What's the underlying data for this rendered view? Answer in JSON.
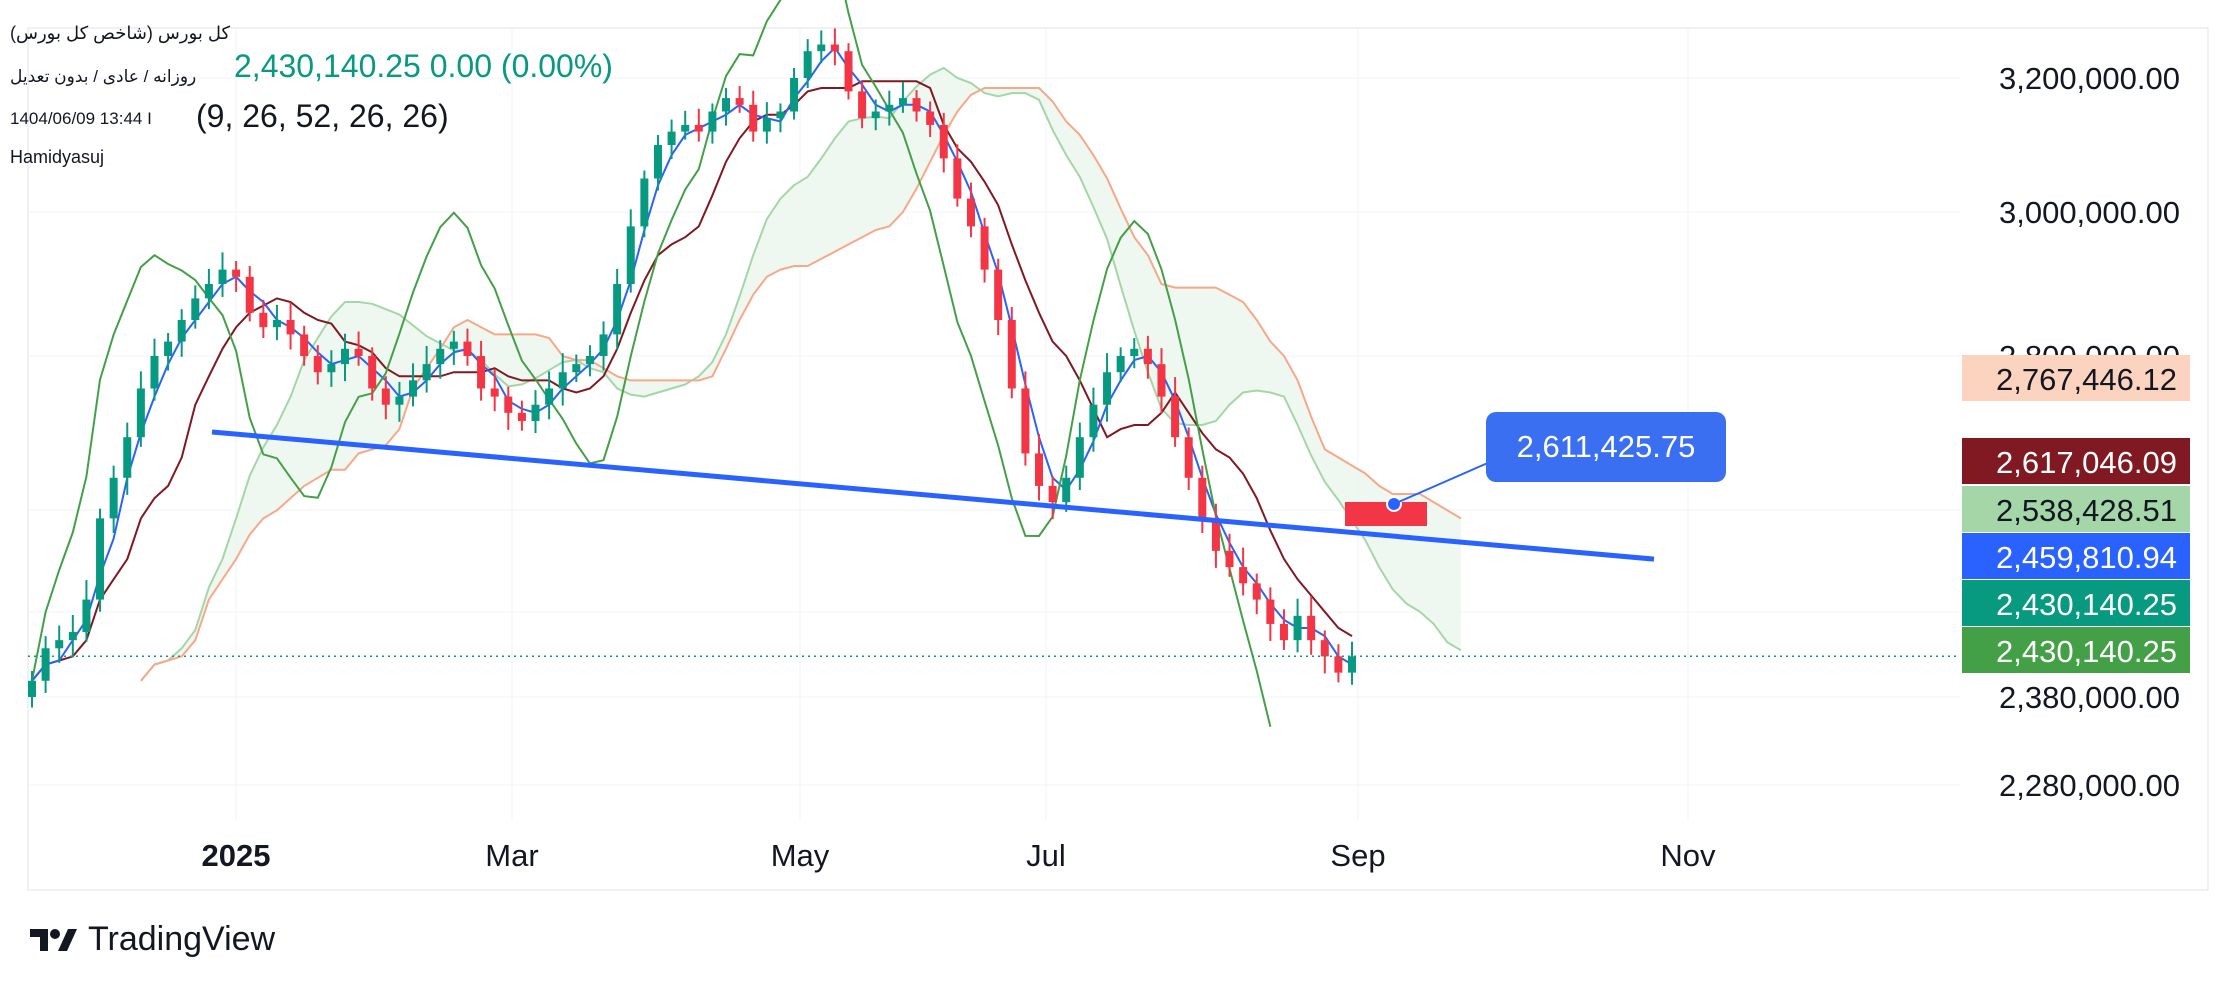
{
  "legend": {
    "title": "کل بورس (شاخص کل بورس)",
    "price_line": "2,430,140.25  0.00 (0.00%)",
    "subtitle": "روزانه / عادی / بدون تعدیل",
    "timestamp": "1404/06/09 13:44 I",
    "params": "(9, 26, 52, 26, 26)",
    "author": "Hamidyasuj"
  },
  "callout_value": "2,611,425.75",
  "footer": {
    "brand": "TradingView"
  },
  "colors": {
    "up": "#089981",
    "down": "#f23645",
    "tenkan": "#2962ff",
    "kijun": "#801922",
    "lagging": "#43a047",
    "span_a": "#a5d6a7",
    "span_b": "#f7a889",
    "trendline": "#2962ff"
  },
  "chart_data": {
    "type": "candlestick",
    "indicator": "Ichimoku Cloud (9, 26, 52, 26, 26)",
    "y_axis_ticks": [
      "3,200,000.00",
      "3,000,000.00",
      "2,800,000.00",
      "2,380,000.00",
      "2,280,000.00"
    ],
    "x_axis_ticks": [
      "2025",
      "Mar",
      "May",
      "Jul",
      "Sep",
      "Nov"
    ],
    "price_tags": [
      {
        "label": "2,767,446.12",
        "color": "#fbd3bf",
        "text": "#131722"
      },
      {
        "label": "2,617,046.09",
        "color": "#801922",
        "text": "#ffffff"
      },
      {
        "label": "2,538,428.51",
        "color": "#a5d6a7",
        "text": "#131722"
      },
      {
        "label": "2,459,810.94",
        "color": "#2962ff",
        "text": "#ffffff"
      },
      {
        "label": "2,430,140.25",
        "color": "#089981",
        "text": "#ffffff"
      },
      {
        "label": "2,430,140.25",
        "color": "#43a047",
        "text": "#ffffff"
      }
    ],
    "last_price": 2430140.25,
    "trendline_end_value": 2611425.75,
    "close_series": [
      2400000,
      2440000,
      2450000,
      2460000,
      2500000,
      2600000,
      2650000,
      2700000,
      2760000,
      2800000,
      2820000,
      2850000,
      2880000,
      2900000,
      2920000,
      2910000,
      2860000,
      2840000,
      2850000,
      2830000,
      2800000,
      2780000,
      2790000,
      2810000,
      2800000,
      2760000,
      2740000,
      2750000,
      2770000,
      2790000,
      2810000,
      2820000,
      2800000,
      2760000,
      2750000,
      2730000,
      2720000,
      2740000,
      2760000,
      2780000,
      2790000,
      2800000,
      2830000,
      2900000,
      2980000,
      3050000,
      3100000,
      3120000,
      3130000,
      3120000,
      3150000,
      3170000,
      3160000,
      3120000,
      3140000,
      3150000,
      3200000,
      3240000,
      3250000,
      3240000,
      3180000,
      3140000,
      3150000,
      3160000,
      3170000,
      3150000,
      3130000,
      3080000,
      3020000,
      2980000,
      2920000,
      2850000,
      2760000,
      2680000,
      2640000,
      2620000,
      2650000,
      2700000,
      2740000,
      2780000,
      2800000,
      2810000,
      2790000,
      2750000,
      2700000,
      2650000,
      2600000,
      2560000,
      2540000,
      2520000,
      2500000,
      2470000,
      2450000,
      2480000,
      2450000,
      2430000,
      2410000,
      2430000
    ]
  }
}
